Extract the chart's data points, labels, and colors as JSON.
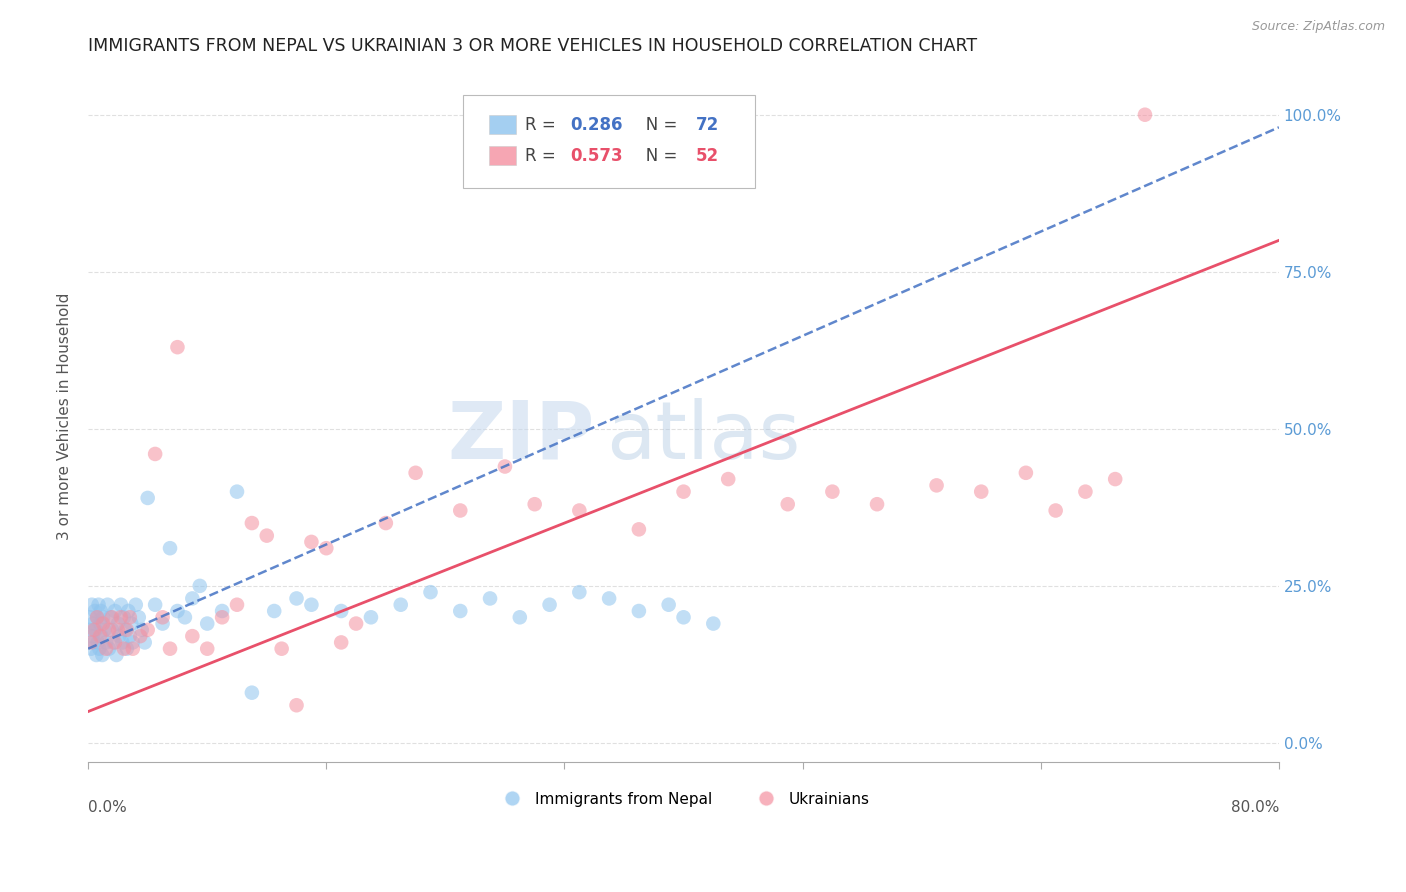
{
  "title": "IMMIGRANTS FROM NEPAL VS UKRAINIAN 3 OR MORE VEHICLES IN HOUSEHOLD CORRELATION CHART",
  "source": "Source: ZipAtlas.com",
  "ylabel": "3 or more Vehicles in Household",
  "xmin": 0.0,
  "xmax": 80.0,
  "ymin": -3.0,
  "ymax": 107.0,
  "watermark_zip": "ZIP",
  "watermark_atlas": "atlas",
  "legend_nepal_r": "0.286",
  "legend_nepal_n": "72",
  "legend_ukraine_r": "0.573",
  "legend_ukraine_n": "52",
  "nepal_color": "#8EC4EE",
  "ukraine_color": "#F490A0",
  "nepal_line_color": "#4472C4",
  "ukraine_line_color": "#E8506A",
  "nepal_trend": [
    0.0,
    80.0,
    15.0,
    98.0
  ],
  "ukraine_trend": [
    0.0,
    80.0,
    5.0,
    80.0
  ],
  "background_color": "#ffffff",
  "grid_color": "#dddddd",
  "title_color": "#222222",
  "axis_label_color": "#555555",
  "right_axis_color": "#5B9BD5",
  "nepal_scatter_x": [
    0.1,
    0.15,
    0.2,
    0.25,
    0.3,
    0.35,
    0.4,
    0.45,
    0.5,
    0.55,
    0.6,
    0.65,
    0.7,
    0.75,
    0.8,
    0.85,
    0.9,
    0.95,
    1.0,
    1.1,
    1.2,
    1.3,
    1.4,
    1.5,
    1.6,
    1.7,
    1.8,
    1.9,
    2.0,
    2.1,
    2.2,
    2.3,
    2.4,
    2.5,
    2.6,
    2.7,
    2.8,
    2.9,
    3.0,
    3.2,
    3.4,
    3.6,
    3.8,
    4.0,
    4.5,
    5.0,
    5.5,
    6.0,
    6.5,
    7.0,
    7.5,
    8.0,
    9.0,
    10.0,
    11.0,
    12.5,
    14.0,
    15.0,
    17.0,
    19.0,
    21.0,
    23.0,
    25.0,
    27.0,
    29.0,
    31.0,
    33.0,
    35.0,
    37.0,
    39.0,
    40.0,
    42.0
  ],
  "nepal_scatter_y": [
    18.0,
    20.0,
    15.0,
    22.0,
    17.0,
    19.0,
    16.0,
    21.0,
    18.0,
    14.0,
    20.0,
    16.0,
    22.0,
    15.0,
    19.0,
    21.0,
    17.0,
    14.0,
    20.0,
    18.0,
    16.0,
    22.0,
    15.0,
    20.0,
    18.0,
    16.0,
    21.0,
    14.0,
    19.0,
    17.0,
    22.0,
    16.0,
    20.0,
    18.0,
    15.0,
    21.0,
    17.0,
    19.0,
    16.0,
    22.0,
    20.0,
    18.0,
    16.0,
    39.0,
    22.0,
    19.0,
    31.0,
    21.0,
    20.0,
    23.0,
    25.0,
    19.0,
    21.0,
    40.0,
    8.0,
    21.0,
    23.0,
    22.0,
    21.0,
    20.0,
    22.0,
    24.0,
    21.0,
    23.0,
    20.0,
    22.0,
    24.0,
    23.0,
    21.0,
    22.0,
    20.0,
    19.0
  ],
  "ukraine_scatter_x": [
    0.2,
    0.4,
    0.6,
    0.8,
    1.0,
    1.2,
    1.4,
    1.6,
    1.8,
    2.0,
    2.2,
    2.4,
    2.6,
    2.8,
    3.0,
    3.5,
    4.0,
    4.5,
    5.0,
    5.5,
    6.0,
    7.0,
    8.0,
    9.0,
    10.0,
    11.0,
    12.0,
    13.0,
    14.0,
    15.0,
    16.0,
    17.0,
    18.0,
    20.0,
    22.0,
    25.0,
    28.0,
    30.0,
    33.0,
    37.0,
    40.0,
    43.0,
    47.0,
    50.0,
    53.0,
    57.0,
    60.0,
    63.0,
    65.0,
    67.0,
    69.0,
    71.0
  ],
  "ukraine_scatter_y": [
    16.0,
    18.0,
    20.0,
    17.0,
    19.0,
    15.0,
    18.0,
    20.0,
    16.0,
    18.0,
    20.0,
    15.0,
    18.0,
    20.0,
    15.0,
    17.0,
    18.0,
    46.0,
    20.0,
    15.0,
    63.0,
    17.0,
    15.0,
    20.0,
    22.0,
    35.0,
    33.0,
    15.0,
    6.0,
    32.0,
    31.0,
    16.0,
    19.0,
    35.0,
    43.0,
    37.0,
    44.0,
    38.0,
    37.0,
    34.0,
    40.0,
    42.0,
    38.0,
    40.0,
    38.0,
    41.0,
    40.0,
    43.0,
    37.0,
    40.0,
    42.0,
    100.0
  ]
}
